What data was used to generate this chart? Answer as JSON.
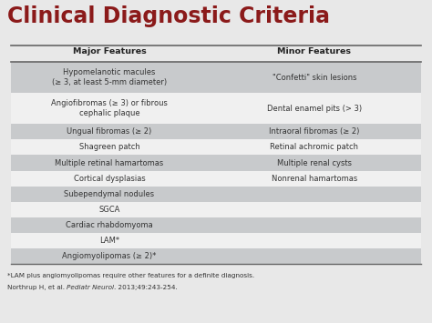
{
  "title": "Clinical Diagnostic Criteria",
  "title_color": "#8B1A1A",
  "col_headers": [
    "Major Features",
    "Minor Features"
  ],
  "rows": [
    {
      "major": "Hypomelanotic macules\n(≥ 3, at least 5-mm diameter)",
      "minor": "\"Confetti\" skin lesions",
      "shaded": true
    },
    {
      "major": "Angiofibromas (≥ 3) or fibrous\ncephalic plaque",
      "minor": "Dental enamel pits (> 3)",
      "shaded": false
    },
    {
      "major": "Ungual fibromas (≥ 2)",
      "minor": "Intraoral fibromas (≥ 2)",
      "shaded": true
    },
    {
      "major": "Shagreen patch",
      "minor": "Retinal achromic patch",
      "shaded": false
    },
    {
      "major": "Multiple retinal hamartomas",
      "minor": "Multiple renal cysts",
      "shaded": true
    },
    {
      "major": "Cortical dysplasias",
      "minor": "Nonrenal hamartomas",
      "shaded": false
    },
    {
      "major": "Subependymal nodules",
      "minor": "",
      "shaded": true
    },
    {
      "major": "SGCA",
      "minor": "",
      "shaded": false
    },
    {
      "major": "Cardiac rhabdomyoma",
      "minor": "",
      "shaded": true
    },
    {
      "major": "LAM*",
      "minor": "",
      "shaded": false
    },
    {
      "major": "Angiomyolipomas (≥ 2)*",
      "minor": "",
      "shaded": true
    }
  ],
  "shaded_color": "#C8CACC",
  "unshaded_color": "#F0F0F0",
  "header_line_color": "#666666",
  "text_color": "#333333",
  "header_text_color": "#222222",
  "footer1": "*LAM plus angiomyolipomas require other features for a definite diagnosis.",
  "footer2_normal": "Northrup H, et al. ",
  "footer2_italic": "Pediatr Neurol",
  "footer2_end": ". 2013;49:243-254.",
  "fig_bg": "#E8E8E8",
  "table_bg": "#F0F0F0",
  "col_split": 0.48
}
